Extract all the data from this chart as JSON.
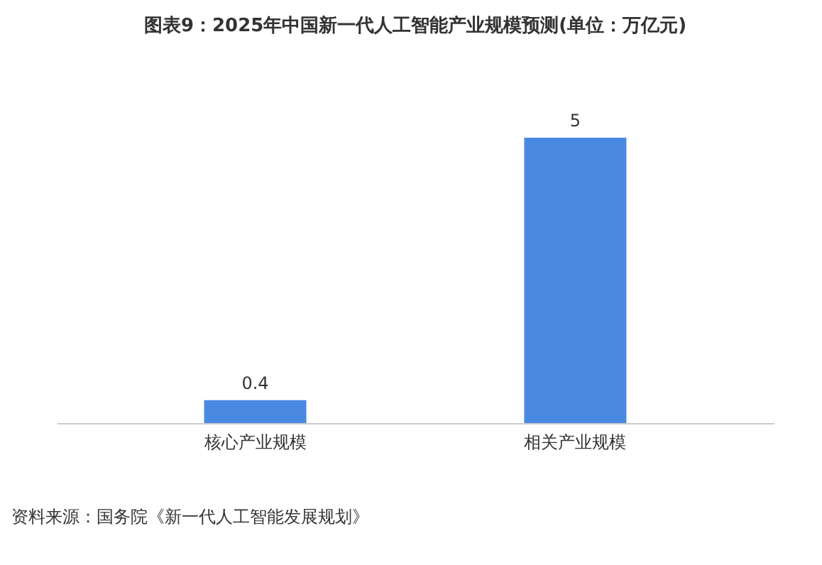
{
  "chart_data": {
    "type": "bar",
    "title": "图表9：2025年中国新一代人工智能产业规模预测(单位：万亿元)",
    "categories": [
      "核心产业规模",
      "相关产业规模"
    ],
    "values": [
      0.4,
      5
    ],
    "color": "#4a89e2",
    "data_labels": true,
    "annotations": [
      "资料来源：国务院《新一代人工智能发展规划》"
    ]
  }
}
